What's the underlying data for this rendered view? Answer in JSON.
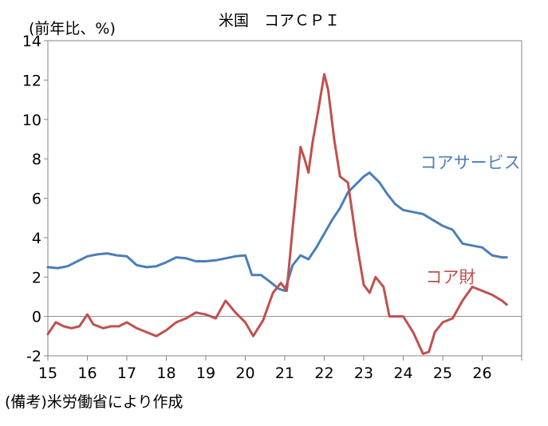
{
  "chart_data": {
    "type": "line",
    "title": "米国　コアＣＰＩ",
    "ylabel": "(前年比、%)",
    "source_note": "(備考)米労働省により作成",
    "ylim": [
      -2,
      14
    ],
    "yticks": [
      -2,
      0,
      2,
      4,
      6,
      8,
      10,
      12,
      14
    ],
    "xlim": [
      2015.0,
      2027.0
    ],
    "xticks": [
      {
        "label": "15",
        "x": 2015.0
      },
      {
        "label": "16",
        "x": 2016.0
      },
      {
        "label": "17",
        "x": 2017.0
      },
      {
        "label": "18",
        "x": 2018.0
      },
      {
        "label": "19",
        "x": 2019.0
      },
      {
        "label": "20",
        "x": 2020.0
      },
      {
        "label": "21",
        "x": 2021.0
      },
      {
        "label": "22",
        "x": 2022.0
      },
      {
        "label": "23",
        "x": 2023.0
      },
      {
        "label": "24",
        "x": 2024.0
      },
      {
        "label": "25",
        "x": 2025.0
      },
      {
        "label": "26",
        "x": 2026.0
      }
    ],
    "grid": false,
    "series": [
      {
        "name": "コアサービス",
        "color": "#4a7ebb",
        "points": [
          [
            2015.0,
            2.5
          ],
          [
            2015.25,
            2.45
          ],
          [
            2015.5,
            2.55
          ],
          [
            2015.75,
            2.8
          ],
          [
            2016.0,
            3.05
          ],
          [
            2016.25,
            3.15
          ],
          [
            2016.5,
            3.2
          ],
          [
            2016.75,
            3.1
          ],
          [
            2017.0,
            3.05
          ],
          [
            2017.25,
            2.6
          ],
          [
            2017.5,
            2.5
          ],
          [
            2017.75,
            2.55
          ],
          [
            2018.0,
            2.75
          ],
          [
            2018.25,
            3.0
          ],
          [
            2018.5,
            2.95
          ],
          [
            2018.75,
            2.8
          ],
          [
            2019.0,
            2.8
          ],
          [
            2019.25,
            2.85
          ],
          [
            2019.5,
            2.95
          ],
          [
            2019.75,
            3.05
          ],
          [
            2020.0,
            3.1
          ],
          [
            2020.17,
            2.1
          ],
          [
            2020.4,
            2.1
          ],
          [
            2020.6,
            1.8
          ],
          [
            2020.85,
            1.4
          ],
          [
            2021.0,
            1.3
          ],
          [
            2021.2,
            2.6
          ],
          [
            2021.4,
            3.1
          ],
          [
            2021.6,
            2.9
          ],
          [
            2021.8,
            3.5
          ],
          [
            2022.0,
            4.2
          ],
          [
            2022.2,
            4.9
          ],
          [
            2022.4,
            5.5
          ],
          [
            2022.6,
            6.3
          ],
          [
            2022.8,
            6.7
          ],
          [
            2023.0,
            7.1
          ],
          [
            2023.15,
            7.3
          ],
          [
            2023.4,
            6.8
          ],
          [
            2023.6,
            6.2
          ],
          [
            2023.8,
            5.7
          ],
          [
            2024.0,
            5.4
          ],
          [
            2024.25,
            5.3
          ],
          [
            2024.5,
            5.2
          ],
          [
            2024.75,
            4.9
          ],
          [
            2025.0,
            4.6
          ],
          [
            2025.25,
            4.4
          ],
          [
            2025.5,
            3.7
          ],
          [
            2025.75,
            3.6
          ],
          [
            2026.0,
            3.5
          ],
          [
            2026.25,
            3.1
          ],
          [
            2026.5,
            3.0
          ],
          [
            2026.62,
            3.0
          ]
        ]
      },
      {
        "name": "コア財",
        "color": "#c0504d",
        "points": [
          [
            2015.0,
            -0.9
          ],
          [
            2015.2,
            -0.3
          ],
          [
            2015.4,
            -0.5
          ],
          [
            2015.6,
            -0.6
          ],
          [
            2015.8,
            -0.5
          ],
          [
            2016.0,
            0.1
          ],
          [
            2016.15,
            -0.4
          ],
          [
            2016.4,
            -0.6
          ],
          [
            2016.6,
            -0.5
          ],
          [
            2016.8,
            -0.5
          ],
          [
            2017.0,
            -0.3
          ],
          [
            2017.25,
            -0.6
          ],
          [
            2017.5,
            -0.8
          ],
          [
            2017.75,
            -1.0
          ],
          [
            2018.0,
            -0.7
          ],
          [
            2018.25,
            -0.3
          ],
          [
            2018.5,
            -0.1
          ],
          [
            2018.75,
            0.2
          ],
          [
            2019.0,
            0.1
          ],
          [
            2019.25,
            -0.1
          ],
          [
            2019.5,
            0.8
          ],
          [
            2019.75,
            0.2
          ],
          [
            2020.0,
            -0.3
          ],
          [
            2020.2,
            -1.0
          ],
          [
            2020.45,
            -0.2
          ],
          [
            2020.7,
            1.2
          ],
          [
            2020.9,
            1.7
          ],
          [
            2021.05,
            1.3
          ],
          [
            2021.2,
            4.5
          ],
          [
            2021.4,
            8.6
          ],
          [
            2021.5,
            8.0
          ],
          [
            2021.6,
            7.3
          ],
          [
            2021.7,
            8.8
          ],
          [
            2021.85,
            10.5
          ],
          [
            2022.0,
            12.3
          ],
          [
            2022.1,
            11.5
          ],
          [
            2022.25,
            9.0
          ],
          [
            2022.4,
            7.1
          ],
          [
            2022.6,
            6.8
          ],
          [
            2022.8,
            4.0
          ],
          [
            2023.0,
            1.6
          ],
          [
            2023.15,
            1.2
          ],
          [
            2023.3,
            2.0
          ],
          [
            2023.5,
            1.5
          ],
          [
            2023.65,
            0.0
          ],
          [
            2023.8,
            0.0
          ],
          [
            2024.0,
            0.0
          ],
          [
            2024.25,
            -0.8
          ],
          [
            2024.5,
            -1.9
          ],
          [
            2024.65,
            -1.8
          ],
          [
            2024.8,
            -0.8
          ],
          [
            2025.0,
            -0.3
          ],
          [
            2025.25,
            -0.1
          ],
          [
            2025.5,
            0.8
          ],
          [
            2025.75,
            1.5
          ],
          [
            2026.0,
            1.3
          ],
          [
            2026.25,
            1.1
          ],
          [
            2026.5,
            0.8
          ],
          [
            2026.62,
            0.6
          ]
        ]
      }
    ],
    "annotations": [
      {
        "text": "コアサービス",
        "series": "コアサービス",
        "color": "#4a7ebb",
        "x": 2025.7,
        "y": 7.8
      },
      {
        "text": "コア財",
        "series": "コア財",
        "color": "#c0504d",
        "x": 2025.2,
        "y": 2.0
      }
    ]
  }
}
